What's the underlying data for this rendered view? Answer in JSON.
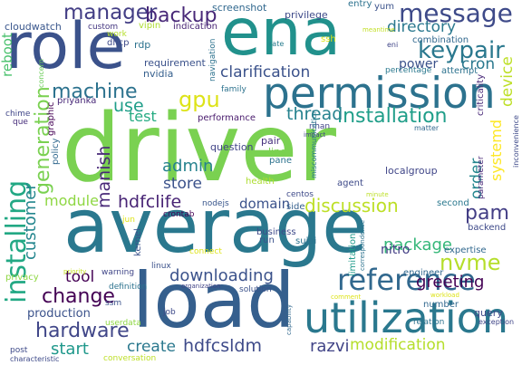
{
  "words": [
    {
      "text": "driver",
      "color": "#7ad151",
      "vertical": false
    },
    {
      "text": "average",
      "color": "#2a788e",
      "vertical": false
    },
    {
      "text": "role",
      "color": "#3b528b",
      "vertical": false
    },
    {
      "text": "ena",
      "color": "#21918c",
      "vertical": false
    },
    {
      "text": "load",
      "color": "#355f8d",
      "vertical": false
    },
    {
      "text": "permission",
      "color": "#2c728e",
      "vertical": false
    },
    {
      "text": "utilization",
      "color": "#2a788e",
      "vertical": false
    },
    {
      "text": "installing",
      "color": "#22a884",
      "vertical": true
    },
    {
      "text": "reference",
      "color": "#31688e",
      "vertical": false
    },
    {
      "text": "message",
      "color": "#3e4a89",
      "vertical": false
    },
    {
      "text": "keypair",
      "color": "#2a788e",
      "vertical": false
    },
    {
      "text": "manager",
      "color": "#433e85",
      "vertical": false
    },
    {
      "text": "backup",
      "color": "#482878",
      "vertical": false
    },
    {
      "text": "installation",
      "color": "#1f9e89",
      "vertical": false
    },
    {
      "text": "gpu",
      "color": "#dde318",
      "vertical": false
    },
    {
      "text": "machine",
      "color": "#2c728e",
      "vertical": false
    },
    {
      "text": "clarification",
      "color": "#3b528b",
      "vertical": false
    },
    {
      "text": "directory",
      "color": "#2a788e",
      "vertical": false
    },
    {
      "text": "generation",
      "color": "#7ad151",
      "vertical": true
    },
    {
      "text": "hardware",
      "color": "#404688",
      "vertical": false
    },
    {
      "text": "change",
      "color": "#440154",
      "vertical": false
    },
    {
      "text": "downloading",
      "color": "#3b528b",
      "vertical": false
    },
    {
      "text": "discussion",
      "color": "#bddf26",
      "vertical": false
    },
    {
      "text": "nvme",
      "color": "#b5de2b",
      "vertical": false
    },
    {
      "text": "package",
      "color": "#35b779",
      "vertical": false
    },
    {
      "text": "greeting",
      "color": "#440154",
      "vertical": false
    },
    {
      "text": "modification",
      "color": "#b5de2b",
      "vertical": false
    },
    {
      "text": "hdfcsldm",
      "color": "#3e4a89",
      "vertical": false
    },
    {
      "text": "hdfclife",
      "color": "#482475",
      "vertical": false
    },
    {
      "text": "module",
      "color": "#8fd744",
      "vertical": false
    },
    {
      "text": "pam",
      "color": "#433e85",
      "vertical": false
    },
    {
      "text": "admin",
      "color": "#26828e",
      "vertical": false
    },
    {
      "text": "thread",
      "color": "#26828e",
      "vertical": false
    },
    {
      "text": "order",
      "color": "#24868e",
      "vertical": true
    },
    {
      "text": "store",
      "color": "#3b528b",
      "vertical": false
    },
    {
      "text": "customer",
      "color": "#24868e",
      "vertical": true
    },
    {
      "text": "manish",
      "color": "#482878",
      "vertical": true
    },
    {
      "text": "use",
      "color": "#1f9e89",
      "vertical": false
    },
    {
      "text": "test",
      "color": "#25ab82",
      "vertical": false
    },
    {
      "text": "start",
      "color": "#1f988b",
      "vertical": false
    },
    {
      "text": "create",
      "color": "#2a788e",
      "vertical": false
    },
    {
      "text": "tool",
      "color": "#440154",
      "vertical": false
    },
    {
      "text": "razvi",
      "color": "#414487",
      "vertical": false
    },
    {
      "text": "domain",
      "color": "#3b528b",
      "vertical": false
    },
    {
      "text": "power",
      "color": "#3b528b",
      "vertical": false
    },
    {
      "text": "cron",
      "color": "#2a788e",
      "vertical": false
    },
    {
      "text": "device",
      "color": "#bddf26",
      "vertical": true
    },
    {
      "text": "systemd",
      "color": "#fde725",
      "vertical": true
    },
    {
      "text": "reboot",
      "color": "#4ac16d",
      "vertical": true
    },
    {
      "text": "production",
      "color": "#3b528b",
      "vertical": false
    },
    {
      "text": "screenshot",
      "color": "#31688e",
      "vertical": false
    },
    {
      "text": "privilege",
      "color": "#3e4a89",
      "vertical": false
    },
    {
      "text": "entry",
      "color": "#2c728e",
      "vertical": false
    },
    {
      "text": "yum",
      "color": "#3b528b",
      "vertical": false
    },
    {
      "text": "custom",
      "color": "#453781",
      "vertical": false
    },
    {
      "text": "vipin",
      "color": "#addc30",
      "vertical": false
    },
    {
      "text": "cloudwatch",
      "color": "#39568c",
      "vertical": false
    },
    {
      "text": "work",
      "color": "#b5de2b",
      "vertical": false
    },
    {
      "text": "indication",
      "color": "#482475",
      "vertical": false
    },
    {
      "text": "ssh",
      "color": "#dde318",
      "vertical": false
    },
    {
      "text": "meantime",
      "color": "#c2df23",
      "vertical": false
    },
    {
      "text": "combination",
      "color": "#31688e",
      "vertical": false
    },
    {
      "text": "eni",
      "color": "#404688",
      "vertical": false
    },
    {
      "text": "rate",
      "color": "#287c8e",
      "vertical": false
    },
    {
      "text": "dhcp",
      "color": "#3e4a89",
      "vertical": false
    },
    {
      "text": "rdp",
      "color": "#2c728e",
      "vertical": false
    },
    {
      "text": "requirement",
      "color": "#3b528b",
      "vertical": false
    },
    {
      "text": "nvidia",
      "color": "#355f8d",
      "vertical": false
    },
    {
      "text": "priyanka",
      "color": "#482878",
      "vertical": false
    },
    {
      "text": "percentage",
      "color": "#2a788e",
      "vertical": false
    },
    {
      "text": "attempt",
      "color": "#2c728e",
      "vertical": false
    },
    {
      "text": "criticality",
      "color": "#482878",
      "vertical": true
    },
    {
      "text": "navigation",
      "color": "#2c728e",
      "vertical": true
    },
    {
      "text": "family",
      "color": "#2c728e",
      "vertical": false
    },
    {
      "text": "concern",
      "color": "#6ccd5a",
      "vertical": true
    },
    {
      "text": "chime",
      "color": "#404688",
      "vertical": false
    },
    {
      "text": "que",
      "color": "#472d7b",
      "vertical": false
    },
    {
      "text": "graphic",
      "color": "#440154",
      "vertical": true
    },
    {
      "text": "performance",
      "color": "#481a6c",
      "vertical": false
    },
    {
      "text": "rihan",
      "color": "#414487",
      "vertical": false
    },
    {
      "text": "impact",
      "color": "#414487",
      "vertical": false
    },
    {
      "text": "matter",
      "color": "#31688e",
      "vertical": false
    },
    {
      "text": "inconvenience",
      "color": "#3e4a89",
      "vertical": true
    },
    {
      "text": "policy",
      "color": "#31688e",
      "vertical": true
    },
    {
      "text": "question",
      "color": "#414487",
      "vertical": false
    },
    {
      "text": "pair",
      "color": "#46307e",
      "vertical": false
    },
    {
      "text": "line",
      "color": "#7ad151",
      "vertical": false
    },
    {
      "text": "pane",
      "color": "#2c728e",
      "vertical": false
    },
    {
      "text": "miscommunication",
      "color": "#2a788e",
      "vertical": true
    },
    {
      "text": "localgroup",
      "color": "#404688",
      "vertical": false
    },
    {
      "text": "parameter",
      "color": "#482878",
      "vertical": true
    },
    {
      "text": "health",
      "color": "#addc30",
      "vertical": false
    },
    {
      "text": "centos",
      "color": "#3e4a89",
      "vertical": false
    },
    {
      "text": "agent",
      "color": "#3e4a89",
      "vertical": false
    },
    {
      "text": "crontab",
      "color": "#440154",
      "vertical": false
    },
    {
      "text": "nodejs",
      "color": "#39568c",
      "vertical": false
    },
    {
      "text": "side",
      "color": "#355f8d",
      "vertical": false
    },
    {
      "text": "minute",
      "color": "#bddf26",
      "vertical": false
    },
    {
      "text": "second",
      "color": "#2a788e",
      "vertical": false
    },
    {
      "text": "jun",
      "color": "#dde318",
      "vertical": false
    },
    {
      "text": "kernel",
      "color": "#3b528b",
      "vertical": true
    },
    {
      "text": "business",
      "color": "#3e4a89",
      "vertical": false
    },
    {
      "text": "run",
      "color": "#3b528b",
      "vertical": false
    },
    {
      "text": "sujai",
      "color": "#2c728e",
      "vertical": false
    },
    {
      "text": "nitro",
      "color": "#433e85",
      "vertical": false
    },
    {
      "text": "limitation",
      "color": "#1f9a8a",
      "vertical": true
    },
    {
      "text": "correspondence",
      "color": "#2c728e",
      "vertical": true
    },
    {
      "text": "backend",
      "color": "#3e4a89",
      "vertical": false
    },
    {
      "text": "expertise",
      "color": "#31688e",
      "vertical": false
    },
    {
      "text": "connect",
      "color": "#dde318",
      "vertical": false
    },
    {
      "text": "warning",
      "color": "#404688",
      "vertical": false
    },
    {
      "text": "linux",
      "color": "#3b528b",
      "vertical": false
    },
    {
      "text": "engineer",
      "color": "#31688e",
      "vertical": false
    },
    {
      "text": "privacy",
      "color": "#8fd744",
      "vertical": false
    },
    {
      "text": "priority",
      "color": "#c2df23",
      "vertical": false
    },
    {
      "text": "definition",
      "color": "#2c728e",
      "vertical": false
    },
    {
      "text": "organization",
      "color": "#414487",
      "vertical": false
    },
    {
      "text": "solution",
      "color": "#3b528b",
      "vertical": false
    },
    {
      "text": "comment",
      "color": "#dde318",
      "vertical": false
    },
    {
      "text": "workload",
      "color": "#dde318",
      "vertical": false
    },
    {
      "text": "number",
      "color": "#31688e",
      "vertical": false
    },
    {
      "text": "query",
      "color": "#3e4a89",
      "vertical": false
    },
    {
      "text": "capability",
      "color": "#31688e",
      "vertical": true
    },
    {
      "text": "relation",
      "color": "#2c728e",
      "vertical": false
    },
    {
      "text": "exception",
      "color": "#404688",
      "vertical": false
    },
    {
      "text": "ssm",
      "color": "#3b528b",
      "vertical": false
    },
    {
      "text": "job",
      "color": "#3e4a89",
      "vertical": false
    },
    {
      "text": "userdata",
      "color": "#8fd744",
      "vertical": false
    },
    {
      "text": "post",
      "color": "#3e4a89",
      "vertical": false
    },
    {
      "text": "characteristic",
      "color": "#3e4a89",
      "vertical": false
    },
    {
      "text": "conversation",
      "color": "#bddf26",
      "vertical": false
    }
  ]
}
